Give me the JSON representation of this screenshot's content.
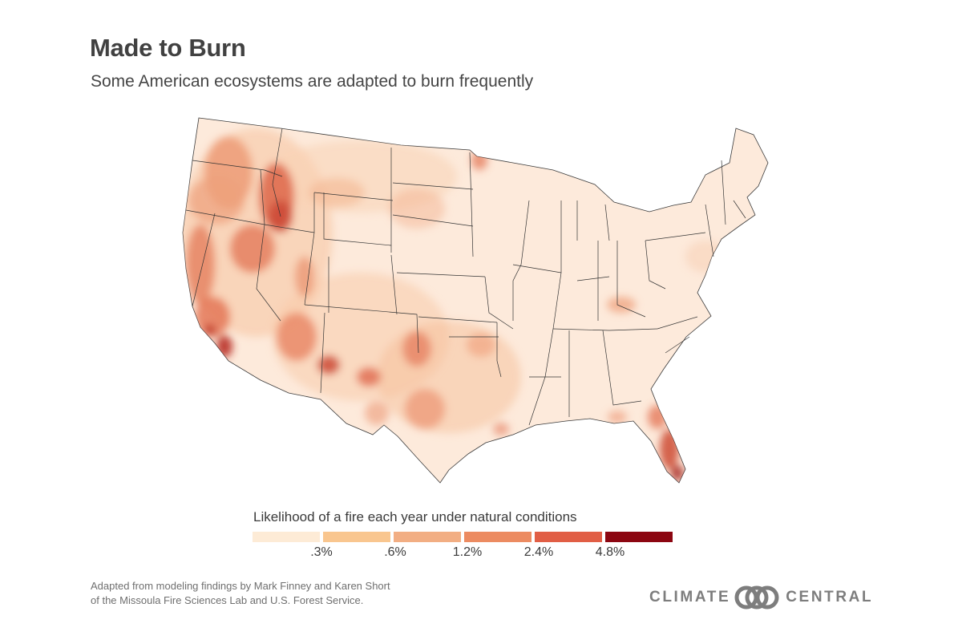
{
  "header": {
    "title": "Made to Burn",
    "subtitle": "Some American ecosystems are adapted to burn frequently"
  },
  "legend": {
    "title": "Likelihood of a fire each year under natural conditions",
    "colors": [
      "#fdebd6",
      "#f9c68f",
      "#f2ae83",
      "#ec8b61",
      "#e15e45",
      "#8c0611"
    ],
    "ticks": [
      ".3%",
      ".6%",
      "1.2%",
      "2.4%",
      "4.8%"
    ]
  },
  "source": {
    "line1": "Adapted from modeling findings by Mark Finney and Karen Short",
    "line2": "of the Missoula Fire Sciences Lab and U.S. Forest Service."
  },
  "logo": {
    "left_text": "CLIMATE",
    "right_text": "CENTRAL",
    "icon": "linked-rings-icon"
  },
  "map": {
    "base_color": "#fdeadb",
    "border_color": "#333333"
  }
}
